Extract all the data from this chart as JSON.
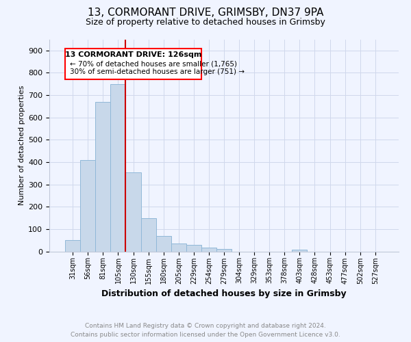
{
  "title_line1": "13, CORMORANT DRIVE, GRIMSBY, DN37 9PA",
  "title_line2": "Size of property relative to detached houses in Grimsby",
  "xlabel": "Distribution of detached houses by size in Grimsby",
  "ylabel": "Number of detached properties",
  "footer_line1": "Contains HM Land Registry data © Crown copyright and database right 2024.",
  "footer_line2": "Contains public sector information licensed under the Open Government Licence v3.0.",
  "annotation_line1": "13 CORMORANT DRIVE: 126sqm",
  "annotation_line2": "← 70% of detached houses are smaller (1,765)",
  "annotation_line3": "30% of semi-detached houses are larger (751) →",
  "bar_labels": [
    "31sqm",
    "56sqm",
    "81sqm",
    "105sqm",
    "130sqm",
    "155sqm",
    "180sqm",
    "205sqm",
    "229sqm",
    "254sqm",
    "279sqm",
    "304sqm",
    "329sqm",
    "353sqm",
    "378sqm",
    "403sqm",
    "428sqm",
    "453sqm",
    "477sqm",
    "502sqm",
    "527sqm"
  ],
  "bar_heights": [
    50,
    410,
    670,
    750,
    355,
    148,
    70,
    35,
    28,
    17,
    10,
    0,
    0,
    0,
    0,
    8,
    0,
    0,
    0,
    0,
    0
  ],
  "bar_color": "#c8d8ea",
  "bar_edgecolor": "#90b8d8",
  "red_line_index": 4,
  "property_line_color": "#cc0000",
  "ylim": [
    0,
    950
  ],
  "yticks": [
    0,
    100,
    200,
    300,
    400,
    500,
    600,
    700,
    800,
    900
  ],
  "background_color": "#f0f4ff",
  "grid_color": "#d0d8ec",
  "title_fontsize": 11,
  "subtitle_fontsize": 9,
  "ylabel_fontsize": 8,
  "xlabel_fontsize": 9,
  "tick_fontsize": 7,
  "footer_fontsize": 6.5,
  "ann1_fontsize": 8,
  "ann23_fontsize": 7.5
}
